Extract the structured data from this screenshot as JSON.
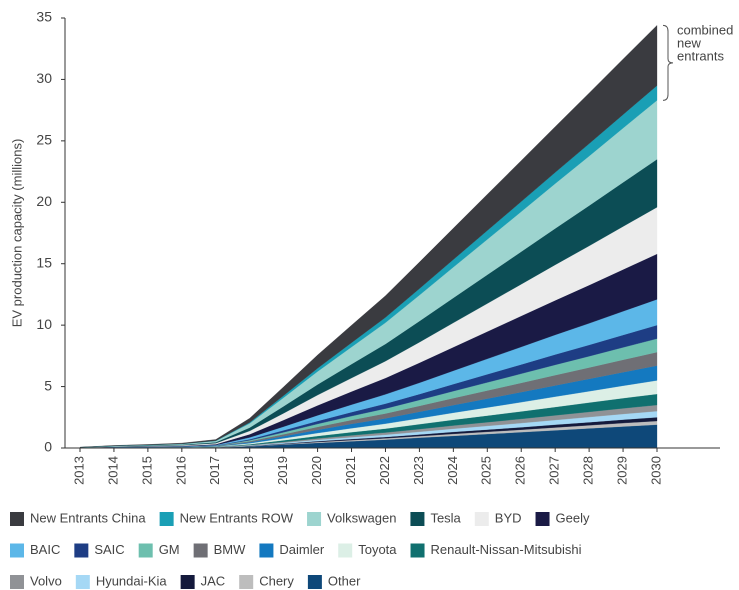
{
  "chart_data": {
    "type": "stacked_area",
    "y_label": "EV production capacity (millions)",
    "annotation": "combined new entrants",
    "categories": [
      "2013",
      "2014",
      "2015",
      "2016",
      "2017",
      "2018",
      "2019",
      "2020",
      "2021",
      "2022",
      "2023",
      "2024",
      "2025",
      "2026",
      "2027",
      "2028",
      "2029",
      "2030"
    ],
    "ylim": [
      0,
      35
    ],
    "yticks": [
      0,
      5,
      10,
      15,
      20,
      25,
      30,
      35
    ],
    "series": [
      {
        "name": "New Entrants China",
        "color": "#3a3b40",
        "values": [
          0.01,
          0.03,
          0.04,
          0.06,
          0.1,
          0.34,
          0.71,
          1.08,
          1.42,
          1.76,
          2.16,
          2.55,
          2.94,
          3.33,
          3.72,
          4.12,
          4.51,
          4.9
        ]
      },
      {
        "name": "New Entrants ROW",
        "color": "#1a9fb5",
        "values": [
          0,
          0.01,
          0.01,
          0.01,
          0.02,
          0.08,
          0.17,
          0.26,
          0.35,
          0.43,
          0.53,
          0.62,
          0.72,
          0.82,
          0.91,
          1.01,
          1.1,
          1.2
        ]
      },
      {
        "name": "Volkswagen",
        "color": "#9dd4cf",
        "values": [
          0.01,
          0.03,
          0.04,
          0.06,
          0.1,
          0.34,
          0.7,
          1.06,
          1.39,
          1.73,
          2.11,
          2.5,
          2.88,
          3.26,
          3.65,
          4.03,
          4.42,
          4.8
        ]
      },
      {
        "name": "Tesla",
        "color": "#0c4d55",
        "values": [
          0.01,
          0.02,
          0.04,
          0.05,
          0.08,
          0.27,
          0.57,
          0.86,
          1.13,
          1.4,
          1.72,
          2.03,
          2.34,
          2.65,
          2.96,
          3.28,
          3.59,
          3.9
        ]
      },
      {
        "name": "BYD",
        "color": "#ececec",
        "values": [
          0.01,
          0.02,
          0.03,
          0.05,
          0.08,
          0.27,
          0.55,
          0.84,
          1.1,
          1.37,
          1.67,
          1.98,
          2.28,
          2.58,
          2.89,
          3.19,
          3.5,
          3.8
        ]
      },
      {
        "name": "Geely",
        "color": "#1a1a45",
        "values": [
          0.01,
          0.02,
          0.03,
          0.04,
          0.07,
          0.26,
          0.54,
          0.81,
          1.07,
          1.33,
          1.63,
          1.92,
          2.22,
          2.52,
          2.81,
          3.11,
          3.4,
          3.7
        ]
      },
      {
        "name": "BAIC",
        "color": "#5cb7e8",
        "values": [
          0.01,
          0.01,
          0.02,
          0.03,
          0.04,
          0.15,
          0.3,
          0.46,
          0.61,
          0.76,
          0.92,
          1.09,
          1.26,
          1.43,
          1.6,
          1.76,
          1.93,
          2.1
        ]
      },
      {
        "name": "SAIC",
        "color": "#1e3d84",
        "values": [
          0,
          0.01,
          0.01,
          0.01,
          0.02,
          0.08,
          0.16,
          0.24,
          0.32,
          0.4,
          0.48,
          0.57,
          0.66,
          0.75,
          0.84,
          0.92,
          1.01,
          1.1
        ]
      },
      {
        "name": "GM",
        "color": "#6dbfae",
        "values": [
          0,
          0.01,
          0.01,
          0.01,
          0.02,
          0.08,
          0.16,
          0.24,
          0.32,
          0.4,
          0.48,
          0.57,
          0.66,
          0.75,
          0.84,
          0.92,
          1.01,
          1.1
        ]
      },
      {
        "name": "BMW",
        "color": "#6f6f75",
        "values": [
          0,
          0.01,
          0.01,
          0.01,
          0.02,
          0.08,
          0.16,
          0.24,
          0.32,
          0.4,
          0.48,
          0.57,
          0.66,
          0.75,
          0.84,
          0.92,
          1.01,
          1.1
        ]
      },
      {
        "name": "Daimler",
        "color": "#1479c0",
        "values": [
          0,
          0.01,
          0.01,
          0.01,
          0.02,
          0.08,
          0.17,
          0.26,
          0.35,
          0.43,
          0.53,
          0.62,
          0.72,
          0.82,
          0.91,
          1.01,
          1.1,
          1.2
        ]
      },
      {
        "name": "Toyota",
        "color": "#dcefe6",
        "values": [
          0,
          0.01,
          0.01,
          0.01,
          0.02,
          0.08,
          0.16,
          0.24,
          0.32,
          0.4,
          0.48,
          0.57,
          0.66,
          0.75,
          0.84,
          0.92,
          1.01,
          1.1
        ]
      },
      {
        "name": "Renault-Nissan-Mitsubishi",
        "color": "#10706f",
        "values": [
          0,
          0.01,
          0.01,
          0.01,
          0.02,
          0.06,
          0.13,
          0.2,
          0.26,
          0.32,
          0.4,
          0.47,
          0.54,
          0.61,
          0.68,
          0.76,
          0.83,
          0.9
        ]
      },
      {
        "name": "Volvo",
        "color": "#909296",
        "values": [
          0,
          0,
          0,
          0.01,
          0.01,
          0.04,
          0.07,
          0.11,
          0.15,
          0.18,
          0.22,
          0.26,
          0.3,
          0.34,
          0.38,
          0.42,
          0.46,
          0.5
        ]
      },
      {
        "name": "Hyundai-Kia",
        "color": "#a5d8f5",
        "values": [
          0,
          0,
          0,
          0.01,
          0.01,
          0.04,
          0.07,
          0.11,
          0.15,
          0.18,
          0.22,
          0.26,
          0.3,
          0.34,
          0.38,
          0.42,
          0.46,
          0.5
        ]
      },
      {
        "name": "JAC",
        "color": "#141a3c",
        "values": [
          0,
          0,
          0,
          0,
          0.01,
          0.02,
          0.04,
          0.07,
          0.09,
          0.11,
          0.13,
          0.16,
          0.18,
          0.2,
          0.23,
          0.25,
          0.28,
          0.3
        ]
      },
      {
        "name": "Chery",
        "color": "#bdbdbd",
        "values": [
          0,
          0,
          0,
          0,
          0.01,
          0.02,
          0.04,
          0.07,
          0.09,
          0.11,
          0.13,
          0.16,
          0.18,
          0.2,
          0.23,
          0.25,
          0.28,
          0.3
        ]
      },
      {
        "name": "Other",
        "color": "#0e4879",
        "values": [
          0.01,
          0.01,
          0.02,
          0.02,
          0.04,
          0.13,
          0.28,
          0.42,
          0.55,
          0.68,
          0.84,
          0.99,
          1.14,
          1.29,
          1.44,
          1.6,
          1.75,
          1.9
        ]
      }
    ]
  }
}
